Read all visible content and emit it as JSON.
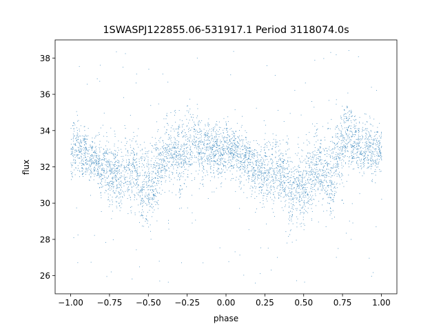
{
  "chart_data": {
    "type": "scatter",
    "title": "1SWASPJ122855.06-531917.1 Period 3118074.0s",
    "xlabel": "phase",
    "ylabel": "flux",
    "xlim": [
      -1.1,
      1.1
    ],
    "ylim": [
      25.0,
      39.0
    ],
    "xticks": [
      -1.0,
      -0.75,
      -0.5,
      -0.25,
      0.0,
      0.25,
      0.5,
      0.75,
      1.0
    ],
    "xtick_labels": [
      "−1.00",
      "−0.75",
      "−0.50",
      "−0.25",
      "0.00",
      "0.25",
      "0.50",
      "0.75",
      "1.00"
    ],
    "yticks": [
      26,
      28,
      30,
      32,
      34,
      36,
      38
    ],
    "ytick_labels": [
      "26",
      "28",
      "30",
      "32",
      "34",
      "36",
      "38"
    ],
    "grid": false,
    "legend": "none",
    "marker_color": "#1f77b4",
    "series": [
      {
        "x": [
          -1.0,
          -0.95,
          -0.9,
          -0.85,
          -0.8,
          -0.75,
          -0.7,
          -0.65,
          -0.6,
          -0.55,
          -0.5,
          -0.45,
          -0.4,
          -0.35,
          -0.3,
          -0.25,
          -0.2,
          -0.15,
          -0.1,
          -0.05,
          0.0,
          0.05,
          0.1,
          0.15,
          0.2,
          0.25,
          0.3,
          0.35,
          0.4,
          0.45,
          0.5,
          0.55,
          0.6,
          0.65,
          0.7,
          0.75,
          0.8,
          0.85,
          0.9,
          0.95,
          1.0
        ],
        "y": [
          33.0,
          33.0,
          32.7,
          32.4,
          32.1,
          31.8,
          31.4,
          31.7,
          31.9,
          31.0,
          30.8,
          31.6,
          32.6,
          33.0,
          32.5,
          33.2,
          33.6,
          32.8,
          33.1,
          32.8,
          33.1,
          32.9,
          32.6,
          32.2,
          31.8,
          31.5,
          31.7,
          31.8,
          31.0,
          30.8,
          31.0,
          31.6,
          32.2,
          31.4,
          32.0,
          33.5,
          33.8,
          33.1,
          33.0,
          32.9,
          33.0
        ],
        "spread": [
          1.0,
          1.0,
          0.9,
          0.8,
          1.0,
          1.2,
          1.3,
          1.2,
          1.4,
          1.6,
          1.5,
          1.4,
          1.2,
          1.1,
          1.4,
          1.4,
          1.3,
          1.0,
          0.9,
          1.0,
          1.0,
          0.9,
          1.0,
          0.9,
          1.0,
          1.3,
          1.4,
          1.2,
          1.6,
          1.5,
          1.3,
          1.4,
          1.2,
          1.5,
          1.5,
          1.3,
          1.3,
          1.0,
          0.9,
          1.0,
          1.0
        ]
      }
    ]
  }
}
